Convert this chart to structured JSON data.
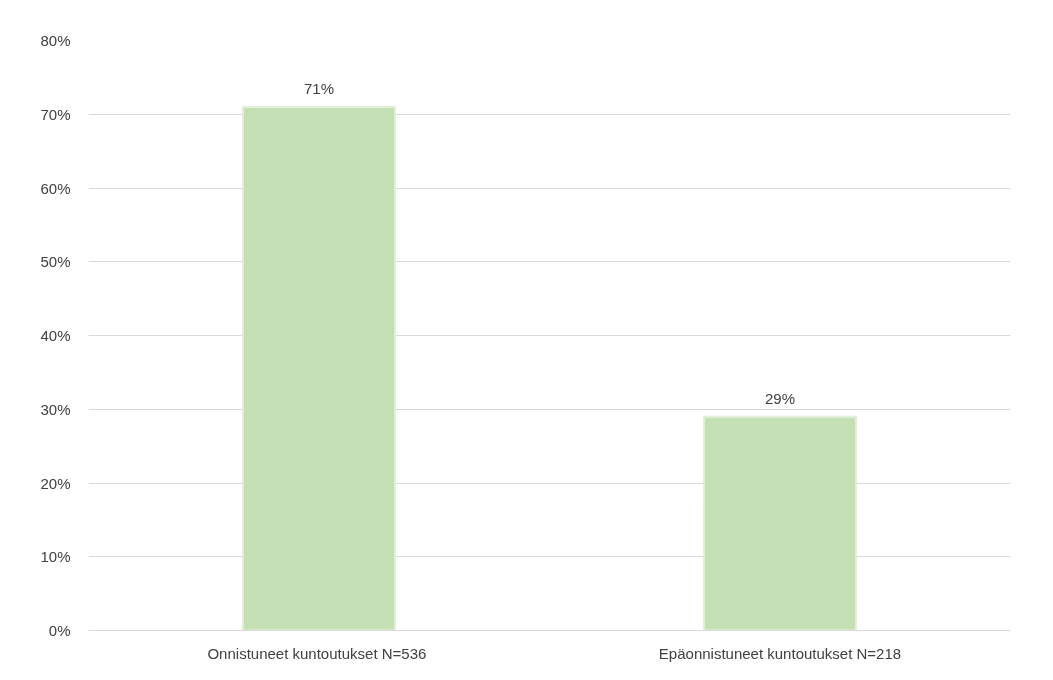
{
  "chart_data": {
    "type": "bar",
    "categories": [
      "Onnistuneet kuntoutukset  N=536",
      "Epäonnistuneet kuntoutukset N=218"
    ],
    "values": [
      71,
      29
    ],
    "color": "#c5e0b4",
    "value_labels": [
      "71%",
      "29%"
    ],
    "ylim": [
      0,
      80
    ],
    "yticks": [
      {
        "value": 0,
        "label": "0%"
      },
      {
        "value": 10,
        "label": "10%"
      },
      {
        "value": 20,
        "label": "20%"
      },
      {
        "value": 30,
        "label": "30%"
      },
      {
        "value": 40,
        "label": "40%"
      },
      {
        "value": 50,
        "label": "50%"
      },
      {
        "value": 60,
        "label": "60%"
      },
      {
        "value": 70,
        "label": "70%"
      },
      {
        "value": 80,
        "label": "80%"
      }
    ],
    "grid": "y"
  }
}
